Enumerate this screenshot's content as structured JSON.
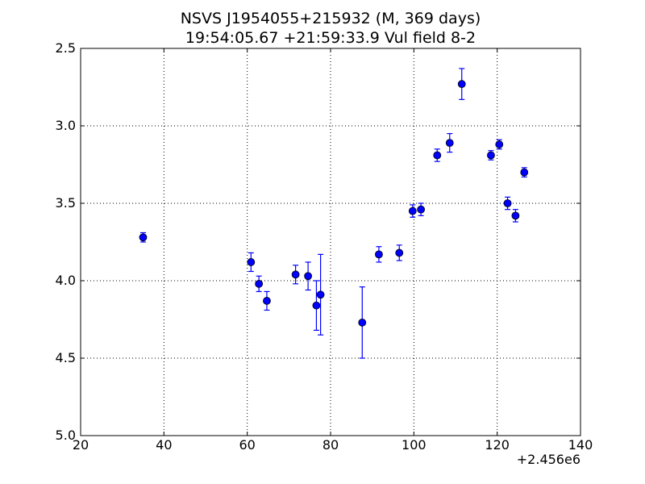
{
  "chart_data": {
    "type": "scatter",
    "title_line1": "NSVS J1954055+215932 (M, 369 days)",
    "title_line2": "19:54:05.67 +21:59:33.9 Vul field 8-2",
    "xlabel": "",
    "ylabel": "",
    "x_offset_label": "+2.456e6",
    "xlim": [
      20,
      140
    ],
    "ylim": [
      2.5,
      5.0
    ],
    "y_inverted": true,
    "grid": true,
    "x_ticks": [
      20,
      40,
      60,
      80,
      100,
      120,
      140
    ],
    "x_tick_labels": [
      "20",
      "40",
      "60",
      "80",
      "100",
      "120",
      "140"
    ],
    "y_ticks": [
      2.5,
      3.0,
      3.5,
      4.0,
      4.5,
      5.0
    ],
    "y_tick_labels": [
      "2.5",
      "3.0",
      "3.5",
      "4.0",
      "4.5",
      "5.0"
    ],
    "marker_color": "#0000ff",
    "points": [
      {
        "x": 35.0,
        "y": 3.72,
        "err": 0.03
      },
      {
        "x": 60.9,
        "y": 3.88,
        "err": 0.06
      },
      {
        "x": 62.8,
        "y": 4.02,
        "err": 0.05
      },
      {
        "x": 64.7,
        "y": 4.13,
        "err": 0.06
      },
      {
        "x": 71.6,
        "y": 3.96,
        "err": 0.06
      },
      {
        "x": 74.6,
        "y": 3.97,
        "err": 0.09
      },
      {
        "x": 76.6,
        "y": 4.16,
        "err": 0.16
      },
      {
        "x": 77.6,
        "y": 4.09,
        "err": 0.26
      },
      {
        "x": 87.6,
        "y": 4.27,
        "err": 0.23
      },
      {
        "x": 91.6,
        "y": 3.83,
        "err": 0.05
      },
      {
        "x": 96.5,
        "y": 3.82,
        "err": 0.05
      },
      {
        "x": 99.7,
        "y": 3.55,
        "err": 0.04
      },
      {
        "x": 101.7,
        "y": 3.54,
        "err": 0.04
      },
      {
        "x": 105.6,
        "y": 3.19,
        "err": 0.04
      },
      {
        "x": 108.6,
        "y": 3.11,
        "err": 0.06
      },
      {
        "x": 111.5,
        "y": 2.73,
        "err": 0.1
      },
      {
        "x": 118.5,
        "y": 3.19,
        "err": 0.03
      },
      {
        "x": 120.5,
        "y": 3.12,
        "err": 0.03
      },
      {
        "x": 122.5,
        "y": 3.5,
        "err": 0.04
      },
      {
        "x": 124.4,
        "y": 3.58,
        "err": 0.04
      },
      {
        "x": 126.5,
        "y": 3.3,
        "err": 0.03
      }
    ]
  }
}
